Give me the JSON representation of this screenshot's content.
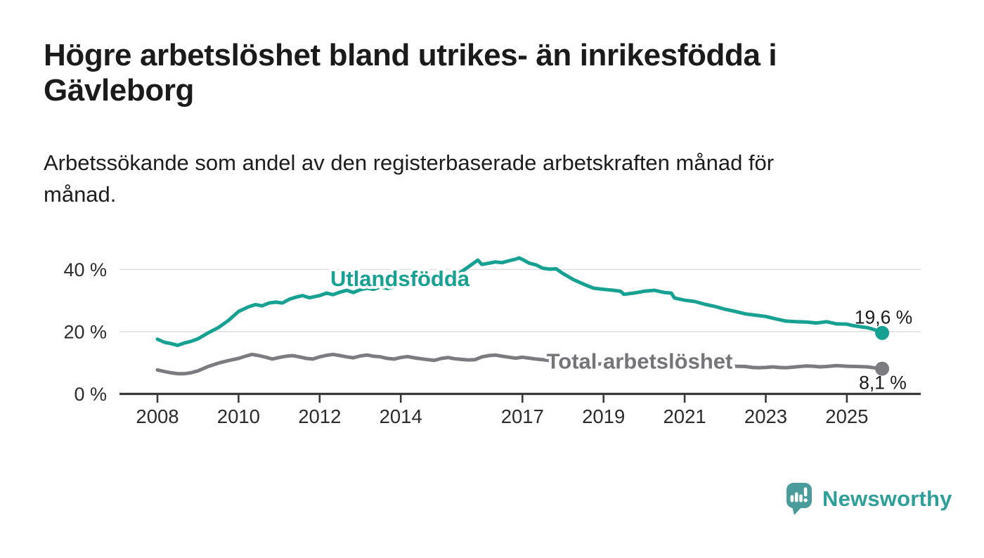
{
  "title": "Högre arbetslöshet bland utrikes- än inrikesfödda i Gävleborg",
  "subtitle": "Arbetssökande som andel av den registerbaserade arbetskraften månad för månad.",
  "footer": {
    "brand": "Newsworthy",
    "logo_icon": "newsworthy-speech-bubble-bar-chart-icon",
    "badge_color": "#4a9b9c",
    "wordmark_color": "#2f9f99"
  },
  "colors": {
    "background": "#ffffff",
    "axis": "#3a3a3a",
    "gridline": "#dcdcdc",
    "tick_label": "#2b2b2b",
    "value_label": "#1a1a1a"
  },
  "chart_data": {
    "type": "line",
    "unit": "%",
    "grid": true,
    "legend_position": "inline-labels",
    "xlim": [
      2007.1,
      2026.8
    ],
    "ylim": [
      0,
      45
    ],
    "x_axis": {
      "ticks": [
        {
          "year": 2008,
          "label": "2008"
        },
        {
          "year": 2010,
          "label": "2010"
        },
        {
          "year": 2012,
          "label": "2012"
        },
        {
          "year": 2014,
          "label": "2014"
        },
        {
          "year": 2017,
          "label": "2017"
        },
        {
          "year": 2019,
          "label": "2019"
        },
        {
          "year": 2021,
          "label": "2021"
        },
        {
          "year": 2023,
          "label": "2023"
        },
        {
          "year": 2025,
          "label": "2025"
        }
      ]
    },
    "y_axis": {
      "unit": "%",
      "ticks": [
        {
          "value": 0,
          "label": "0 %"
        },
        {
          "value": 20,
          "label": "20 %"
        },
        {
          "value": 40,
          "label": "40 %"
        }
      ]
    },
    "series": [
      {
        "name": "Utlandsfödda",
        "color": "#17a192",
        "label_color": "#17a192",
        "end_value": 19.6,
        "end_value_label": "19,6 %",
        "points": [
          [
            2008.0,
            17.6
          ],
          [
            2008.17,
            16.6
          ],
          [
            2008.33,
            16.2
          ],
          [
            2008.5,
            15.6
          ],
          [
            2008.67,
            16.4
          ],
          [
            2008.83,
            16.9
          ],
          [
            2009.0,
            17.7
          ],
          [
            2009.25,
            19.6
          ],
          [
            2009.5,
            21.3
          ],
          [
            2009.75,
            23.6
          ],
          [
            2010.0,
            26.5
          ],
          [
            2010.25,
            28.0
          ],
          [
            2010.42,
            28.7
          ],
          [
            2010.58,
            28.3
          ],
          [
            2010.75,
            29.2
          ],
          [
            2010.92,
            29.5
          ],
          [
            2011.08,
            29.2
          ],
          [
            2011.25,
            30.4
          ],
          [
            2011.42,
            31.1
          ],
          [
            2011.58,
            31.6
          ],
          [
            2011.75,
            30.9
          ],
          [
            2012.0,
            31.6
          ],
          [
            2012.17,
            32.4
          ],
          [
            2012.33,
            31.9
          ],
          [
            2012.5,
            32.7
          ],
          [
            2012.67,
            33.3
          ],
          [
            2012.83,
            32.6
          ],
          [
            2013.0,
            33.5
          ],
          [
            2013.17,
            34.0
          ],
          [
            2013.33,
            33.6
          ],
          [
            2013.5,
            34.4
          ],
          [
            2013.67,
            33.9
          ],
          [
            2013.83,
            34.4
          ],
          [
            2014.0,
            34.9
          ],
          [
            2014.25,
            35.4
          ],
          [
            2014.5,
            35.0
          ],
          [
            2014.75,
            35.9
          ],
          [
            2015.0,
            36.6
          ],
          [
            2015.25,
            37.6
          ],
          [
            2015.5,
            39.3
          ],
          [
            2015.75,
            41.6
          ],
          [
            2015.9,
            43.0
          ],
          [
            2016.0,
            41.6
          ],
          [
            2016.17,
            42.0
          ],
          [
            2016.33,
            42.4
          ],
          [
            2016.5,
            42.2
          ],
          [
            2016.67,
            42.8
          ],
          [
            2016.83,
            43.3
          ],
          [
            2016.92,
            43.7
          ],
          [
            2017.0,
            43.2
          ],
          [
            2017.17,
            42.0
          ],
          [
            2017.33,
            41.5
          ],
          [
            2017.5,
            40.4
          ],
          [
            2017.67,
            40.1
          ],
          [
            2017.83,
            40.2
          ],
          [
            2018.0,
            38.7
          ],
          [
            2018.25,
            36.8
          ],
          [
            2018.5,
            35.3
          ],
          [
            2018.75,
            34.0
          ],
          [
            2019.0,
            33.6
          ],
          [
            2019.25,
            33.3
          ],
          [
            2019.42,
            33.0
          ],
          [
            2019.5,
            32.0
          ],
          [
            2019.75,
            32.4
          ],
          [
            2020.0,
            33.0
          ],
          [
            2020.25,
            33.3
          ],
          [
            2020.5,
            32.6
          ],
          [
            2020.67,
            32.4
          ],
          [
            2020.75,
            30.8
          ],
          [
            2021.0,
            30.1
          ],
          [
            2021.25,
            29.7
          ],
          [
            2021.5,
            28.8
          ],
          [
            2021.75,
            28.1
          ],
          [
            2022.0,
            27.2
          ],
          [
            2022.25,
            26.5
          ],
          [
            2022.5,
            25.7
          ],
          [
            2022.75,
            25.3
          ],
          [
            2023.0,
            24.9
          ],
          [
            2023.25,
            24.1
          ],
          [
            2023.5,
            23.4
          ],
          [
            2023.75,
            23.2
          ],
          [
            2024.0,
            23.1
          ],
          [
            2024.25,
            22.8
          ],
          [
            2024.5,
            23.2
          ],
          [
            2024.75,
            22.5
          ],
          [
            2025.0,
            22.4
          ],
          [
            2025.17,
            21.9
          ],
          [
            2025.33,
            21.6
          ],
          [
            2025.5,
            21.3
          ],
          [
            2025.67,
            20.7
          ],
          [
            2025.87,
            19.6
          ]
        ]
      },
      {
        "name": "Total arbetslöshet",
        "color": "#7b7b80",
        "label_color": "#747479",
        "end_value": 8.1,
        "end_value_label": "8,1 %",
        "points": [
          [
            2008.0,
            7.7
          ],
          [
            2008.17,
            7.2
          ],
          [
            2008.33,
            6.8
          ],
          [
            2008.5,
            6.5
          ],
          [
            2008.67,
            6.5
          ],
          [
            2008.83,
            6.8
          ],
          [
            2009.0,
            7.4
          ],
          [
            2009.25,
            8.8
          ],
          [
            2009.5,
            9.9
          ],
          [
            2009.75,
            10.7
          ],
          [
            2010.0,
            11.4
          ],
          [
            2010.17,
            12.1
          ],
          [
            2010.33,
            12.7
          ],
          [
            2010.5,
            12.3
          ],
          [
            2010.67,
            11.8
          ],
          [
            2010.83,
            11.2
          ],
          [
            2011.0,
            11.7
          ],
          [
            2011.17,
            12.1
          ],
          [
            2011.33,
            12.3
          ],
          [
            2011.5,
            11.9
          ],
          [
            2011.67,
            11.4
          ],
          [
            2011.83,
            11.2
          ],
          [
            2012.0,
            11.9
          ],
          [
            2012.17,
            12.4
          ],
          [
            2012.33,
            12.7
          ],
          [
            2012.5,
            12.3
          ],
          [
            2012.67,
            11.9
          ],
          [
            2012.83,
            11.6
          ],
          [
            2013.0,
            12.2
          ],
          [
            2013.17,
            12.5
          ],
          [
            2013.33,
            12.1
          ],
          [
            2013.5,
            11.9
          ],
          [
            2013.67,
            11.4
          ],
          [
            2013.83,
            11.2
          ],
          [
            2014.0,
            11.7
          ],
          [
            2014.17,
            12.0
          ],
          [
            2014.33,
            11.6
          ],
          [
            2014.5,
            11.3
          ],
          [
            2014.67,
            11.0
          ],
          [
            2014.83,
            10.8
          ],
          [
            2015.0,
            11.4
          ],
          [
            2015.17,
            11.7
          ],
          [
            2015.33,
            11.3
          ],
          [
            2015.5,
            11.1
          ],
          [
            2015.67,
            10.9
          ],
          [
            2015.83,
            11.0
          ],
          [
            2016.0,
            11.9
          ],
          [
            2016.17,
            12.3
          ],
          [
            2016.33,
            12.5
          ],
          [
            2016.5,
            12.1
          ],
          [
            2016.67,
            11.8
          ],
          [
            2016.83,
            11.5
          ],
          [
            2017.0,
            11.8
          ],
          [
            2017.17,
            11.5
          ],
          [
            2017.33,
            11.2
          ],
          [
            2017.5,
            11.0
          ],
          [
            2017.75,
            10.6
          ],
          [
            2018.0,
            10.5
          ],
          [
            2018.25,
            10.2
          ],
          [
            2018.5,
            9.8
          ],
          [
            2018.75,
            9.5
          ],
          [
            2019.0,
            9.7
          ],
          [
            2019.25,
            9.4
          ],
          [
            2019.5,
            9.2
          ],
          [
            2019.75,
            9.5
          ],
          [
            2020.0,
            9.9
          ],
          [
            2020.25,
            10.7
          ],
          [
            2020.5,
            11.0
          ],
          [
            2020.75,
            10.6
          ],
          [
            2021.0,
            10.4
          ],
          [
            2021.25,
            10.0
          ],
          [
            2021.5,
            9.6
          ],
          [
            2021.75,
            9.2
          ],
          [
            2022.0,
            9.1
          ],
          [
            2022.25,
            8.9
          ],
          [
            2022.5,
            8.8
          ],
          [
            2022.67,
            8.5
          ],
          [
            2022.83,
            8.4
          ],
          [
            2023.0,
            8.5
          ],
          [
            2023.17,
            8.7
          ],
          [
            2023.33,
            8.5
          ],
          [
            2023.5,
            8.4
          ],
          [
            2023.75,
            8.7
          ],
          [
            2024.0,
            9.0
          ],
          [
            2024.17,
            8.9
          ],
          [
            2024.33,
            8.7
          ],
          [
            2024.5,
            8.8
          ],
          [
            2024.75,
            9.1
          ],
          [
            2025.0,
            8.9
          ],
          [
            2025.25,
            8.8
          ],
          [
            2025.5,
            8.7
          ],
          [
            2025.67,
            8.4
          ],
          [
            2025.87,
            8.1
          ]
        ]
      }
    ]
  }
}
